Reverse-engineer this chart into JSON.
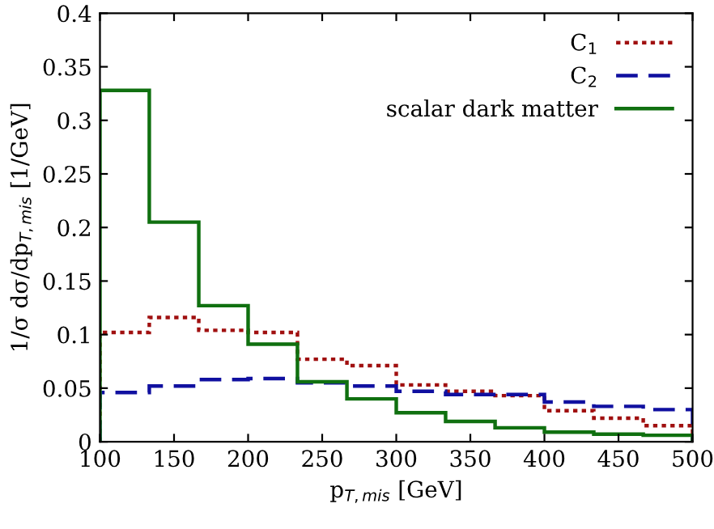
{
  "chart_data": {
    "type": "histogram",
    "xlabel": "p$_{T,mis}$ [GeV]",
    "ylabel": "1/σ dσ/dp$_{T,mis}$ [1/GeV]",
    "bins": [
      100,
      133.3,
      166.7,
      200,
      233.3,
      266.7,
      300,
      333.3,
      366.7,
      400,
      433.3,
      466.7,
      500
    ],
    "series": [
      {
        "name": "C$_{1}$",
        "color": "#a01010",
        "line_style": "dotted",
        "values": [
          0.102,
          0.116,
          0.104,
          0.102,
          0.077,
          0.071,
          0.053,
          0.047,
          0.043,
          0.029,
          0.022,
          0.015
        ]
      },
      {
        "name": "C$_{2}$",
        "color": "#1010a0",
        "line_style": "dashed",
        "values": [
          0.046,
          0.052,
          0.058,
          0.059,
          0.055,
          0.052,
          0.047,
          0.044,
          0.044,
          0.037,
          0.033,
          0.03
        ]
      },
      {
        "name": "scalar dark matter",
        "color": "#107010",
        "line_style": "solid",
        "values": [
          0.328,
          0.205,
          0.127,
          0.091,
          0.056,
          0.04,
          0.027,
          0.019,
          0.013,
          0.009,
          0.007,
          0.006
        ]
      }
    ],
    "xlim": [
      100,
      500
    ],
    "ylim": [
      0,
      0.4
    ],
    "xticks": [
      100,
      150,
      200,
      250,
      300,
      350,
      400,
      450,
      500
    ],
    "yticks": [
      0,
      0.05,
      0.1,
      0.15,
      0.2,
      0.25,
      0.3,
      0.35,
      0.4
    ],
    "grid": false,
    "legend": "top right"
  }
}
